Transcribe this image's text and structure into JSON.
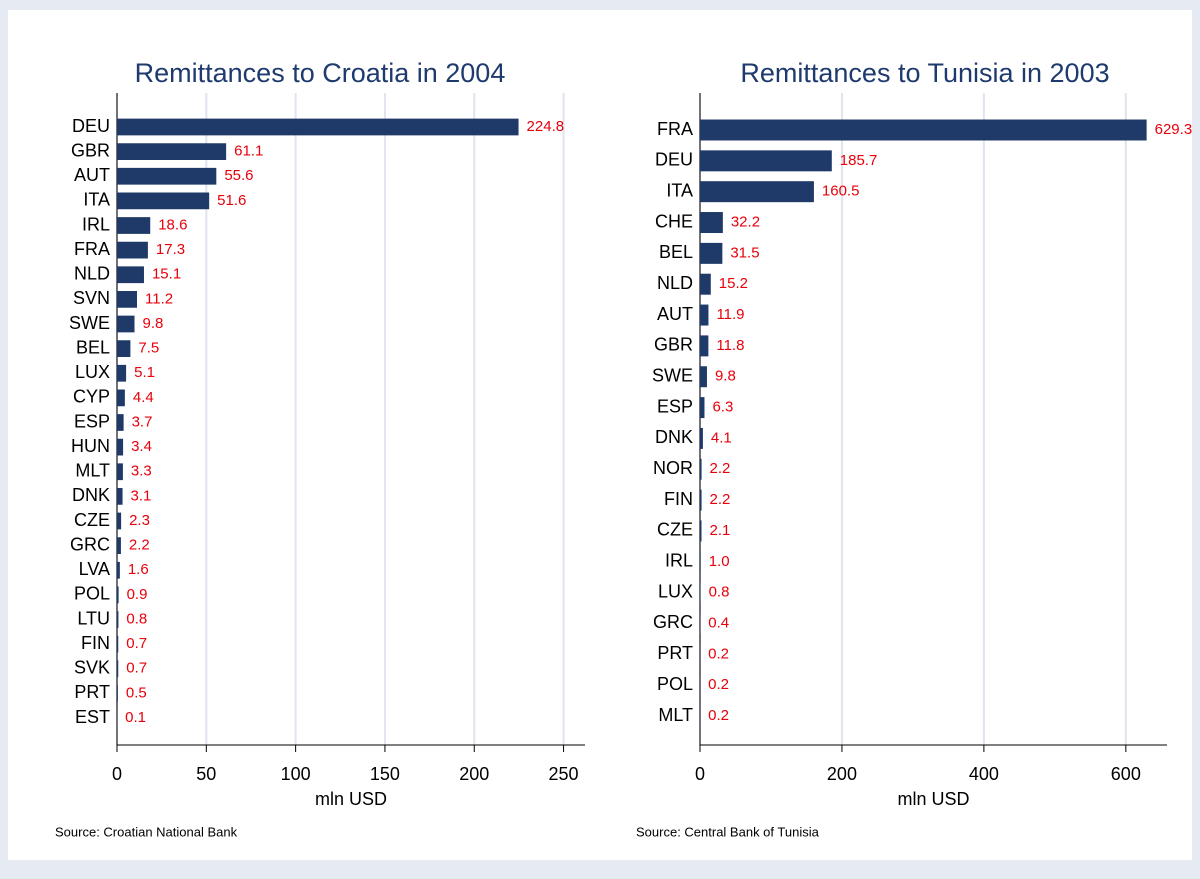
{
  "chart_data": [
    {
      "type": "bar",
      "orientation": "horizontal",
      "title": "Remittances to Croatia in 2004",
      "xlabel": "mln USD",
      "source": "Source: Croatian National Bank",
      "categories": [
        "DEU",
        "GBR",
        "AUT",
        "ITA",
        "IRL",
        "FRA",
        "NLD",
        "SVN",
        "SWE",
        "BEL",
        "LUX",
        "CYP",
        "ESP",
        "HUN",
        "MLT",
        "DNK",
        "CZE",
        "GRC",
        "LVA",
        "POL",
        "LTU",
        "FIN",
        "SVK",
        "PRT",
        "EST"
      ],
      "values": [
        224.8,
        61.1,
        55.6,
        51.6,
        18.6,
        17.3,
        15.1,
        11.2,
        9.8,
        7.5,
        5.1,
        4.4,
        3.7,
        3.4,
        3.3,
        3.1,
        2.3,
        2.2,
        1.6,
        0.9,
        0.8,
        0.7,
        0.7,
        0.5,
        0.1
      ],
      "color": "#1f3a68",
      "label_color": "#e8000b",
      "xlim": [
        0,
        262
      ],
      "xticks": [
        0,
        50,
        100,
        150,
        200,
        250
      ],
      "grid": true
    },
    {
      "type": "bar",
      "orientation": "horizontal",
      "title": "Remittances to Tunisia in 2003",
      "xlabel": "mln USD",
      "source": "Source: Central Bank of Tunisia",
      "categories": [
        "FRA",
        "DEU",
        "ITA",
        "CHE",
        "BEL",
        "NLD",
        "AUT",
        "GBR",
        "SWE",
        "ESP",
        "DNK",
        "NOR",
        "FIN",
        "CZE",
        "IRL",
        "LUX",
        "GRC",
        "PRT",
        "POL",
        "MLT"
      ],
      "values": [
        629.3,
        185.7,
        160.5,
        32.2,
        31.5,
        15.2,
        11.9,
        11.8,
        9.8,
        6.3,
        4.1,
        2.2,
        2.2,
        2.1,
        1,
        0.8,
        0.4,
        0.2,
        0.2,
        0.2
      ],
      "value_labels": [
        "629.3",
        "185.7",
        "160.5",
        "32.2",
        "31.5",
        "15.2",
        "11.9",
        "11.8",
        "9.8",
        "6.3",
        "4.1",
        "2.2",
        "2.2",
        "2.1",
        "1.0",
        "0.8",
        "0.4",
        "0.2",
        "0.2",
        "0.2"
      ],
      "color": "#1f3a68",
      "label_color": "#e8000b",
      "xlim": [
        0,
        658
      ],
      "xticks": [
        0,
        200,
        400,
        600
      ],
      "grid": true
    }
  ]
}
